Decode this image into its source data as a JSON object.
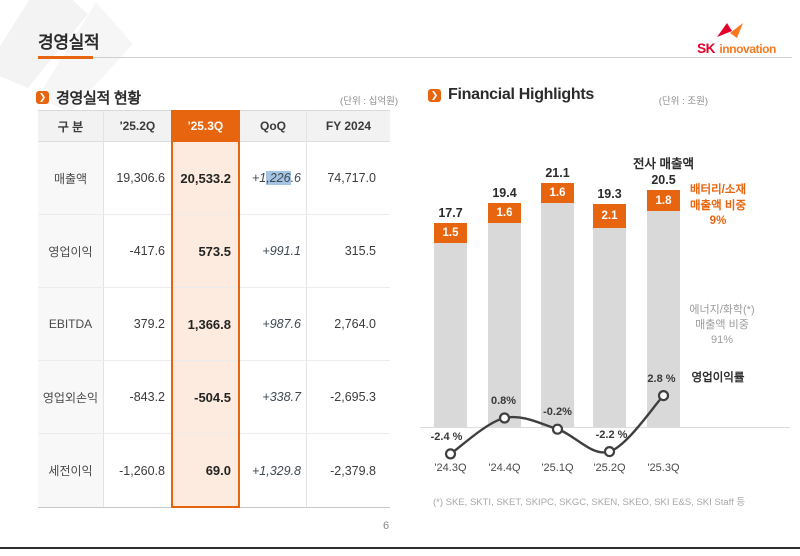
{
  "page": {
    "title": "경영실적",
    "page_number": "6"
  },
  "logo": {
    "sk": "SK",
    "innovation": "innovation"
  },
  "icons": {
    "section_arrow": "❯"
  },
  "table_section": {
    "title": "경영실적 현황",
    "unit": "(단위 : 십억원)",
    "columns": [
      "구 분",
      "'25.2Q",
      "'25.3Q",
      "QoQ",
      "FY 2024"
    ],
    "highlight_column": "'25.3Q",
    "rows": [
      {
        "label": "매출액",
        "q2": "19,306.6",
        "q3": "20,533.2",
        "qoq": {
          "pre": "+1",
          "sel": ",226",
          "post": ".6"
        },
        "fy": "74,717.0"
      },
      {
        "label": "영업이익",
        "q2": "-417.6",
        "q3": "573.5",
        "qoq": "+991.1",
        "fy": "315.5"
      },
      {
        "label": "EBITDA",
        "q2": "379.2",
        "q3": "1,366.8",
        "qoq": "+987.6",
        "fy": "2,764.0"
      },
      {
        "label": "영업외손익",
        "q2": "-843.2",
        "q3": "-504.5",
        "qoq": "+338.7",
        "fy": "-2,695.3"
      },
      {
        "label": "세전이익",
        "q2": "-1,260.8",
        "q3": "69.0",
        "qoq": "+1,329.8",
        "fy": "-2,379.8"
      }
    ]
  },
  "chart_section": {
    "title": "Financial Highlights",
    "unit": "(단위 : 조원)",
    "footnote": "(*) SKE, SKTI, SKET, SKIPC, SKGC, SKEN, SKEO, SKI E&S, SKI Staff 등",
    "annotations": {
      "total_label": "전사 매출액",
      "battery": [
        "배터리/소재",
        "매출액 비중",
        "9%"
      ],
      "energy": [
        "에너지/화학(*)",
        "매출액 비중",
        "91%"
      ],
      "opmargin_label": "영업이익률"
    }
  },
  "chart_data": {
    "type": "bar",
    "categories": [
      "'24.3Q",
      "'24.4Q",
      "'25.1Q",
      "'25.2Q",
      "'25.3Q"
    ],
    "series": [
      {
        "name": "전사 매출액 (조원)",
        "values": [
          17.7,
          19.4,
          21.1,
          19.3,
          20.5
        ]
      },
      {
        "name": "배터리/소재 매출액 (조원)",
        "values": [
          1.5,
          1.6,
          1.6,
          2.1,
          1.8
        ]
      },
      {
        "name": "영업이익률 (%)",
        "type": "line",
        "values": [
          -2.4,
          0.8,
          -0.2,
          -2.2,
          2.8
        ],
        "labels": [
          "-2.4 %",
          "0.8%",
          "-0.2%",
          "-2.2 %",
          "2.8 %"
        ]
      }
    ],
    "title": "Financial Highlights",
    "xlabel": "",
    "ylabel": "조원",
    "ylim": [
      0,
      22
    ],
    "legend_position": "right",
    "grid": false,
    "colors": {
      "bar": "#D9D9D9",
      "bar_accent": "#E8650F",
      "line": "#3F3F3F"
    }
  }
}
